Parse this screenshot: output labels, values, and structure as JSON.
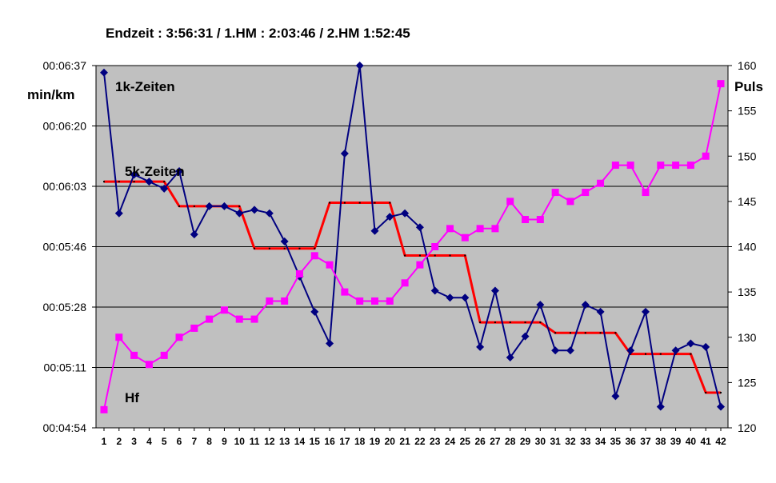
{
  "chart_data": {
    "type": "line",
    "title": "Endzeit : 3:56:31  / 1.HM : 2:03:46  / 2.HM  1:52:45",
    "ylabel_left": "min/km",
    "ylabel_right": "Puls",
    "ylim_left_seconds": [
      294,
      397
    ],
    "yticks_left": [
      "00:04:54",
      "00:05:11",
      "00:05:28",
      "00:05:46",
      "00:06:03",
      "00:06:20",
      "00:06:37"
    ],
    "ylim_right": [
      120,
      160
    ],
    "yticks_right": [
      "120",
      "125",
      "130",
      "135",
      "140",
      "145",
      "150",
      "155",
      "160"
    ],
    "x": [
      1,
      2,
      3,
      4,
      5,
      6,
      7,
      8,
      9,
      10,
      11,
      12,
      13,
      14,
      15,
      16,
      17,
      18,
      19,
      20,
      21,
      22,
      23,
      24,
      25,
      26,
      27,
      28,
      29,
      30,
      31,
      32,
      33,
      34,
      35,
      36,
      37,
      38,
      39,
      40,
      41,
      42
    ],
    "grid": true,
    "background": "#c0c0c0",
    "annotations": [
      "1k-Zeiten",
      "5k-Zeiten",
      "Hf"
    ],
    "series": [
      {
        "name": "1k-Zeiten",
        "axis": "left",
        "color": "#000080",
        "marker": "diamond",
        "values_seconds": [
          395,
          355,
          366,
          364,
          362,
          367,
          349,
          357,
          357,
          355,
          356,
          355,
          347,
          337,
          327,
          318,
          372,
          397,
          350,
          354,
          355,
          351,
          333,
          331,
          331,
          317,
          333,
          314,
          320,
          329,
          316,
          316,
          329,
          327,
          303,
          316,
          327,
          300,
          316,
          318,
          317,
          300
        ]
      },
      {
        "name": "5k-Zeiten",
        "axis": "left",
        "color": "#ff0000",
        "marker": "none",
        "values_seconds": [
          364,
          364,
          364,
          364,
          364,
          357,
          357,
          357,
          357,
          357,
          345,
          345,
          345,
          345,
          345,
          358,
          358,
          358,
          358,
          358,
          343,
          343,
          343,
          343,
          343,
          324,
          324,
          324,
          324,
          324,
          321,
          321,
          321,
          321,
          321,
          315,
          315,
          315,
          315,
          315,
          304,
          304
        ]
      },
      {
        "name": "Hf",
        "axis": "right",
        "color": "#ff00ff",
        "marker": "square",
        "values": [
          122,
          130,
          128,
          127,
          128,
          130,
          131,
          132,
          133,
          132,
          132,
          134,
          134,
          137,
          139,
          138,
          135,
          134,
          134,
          134,
          136,
          138,
          140,
          142,
          141,
          142,
          142,
          145,
          143,
          143,
          146,
          145,
          146,
          147,
          149,
          149,
          146,
          149,
          149,
          149,
          150,
          158
        ]
      }
    ]
  }
}
